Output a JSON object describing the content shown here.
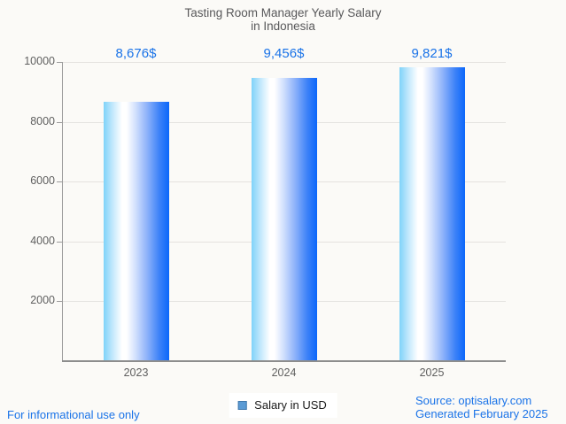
{
  "title": {
    "line1": "Tasting Room Manager Yearly Salary",
    "line2": "in Indonesia"
  },
  "chart_data": {
    "type": "bar",
    "title": "Tasting Room Manager Yearly Salary in Indonesia",
    "categories": [
      "2023",
      "2024",
      "2025"
    ],
    "values": [
      8676,
      9456,
      9821
    ],
    "value_labels": [
      "8,676$",
      "9,456$",
      "9,821$"
    ],
    "xlabel": "",
    "ylabel": "",
    "ylim": [
      0,
      10000
    ],
    "yticks": [
      2000,
      4000,
      6000,
      8000,
      10000
    ],
    "grid": true,
    "legend_entries": [
      "Salary in USD"
    ],
    "legend_position": "bottom-center",
    "bar_gradient": [
      "#7fd3f9",
      "#ffffff",
      "#0b67fa"
    ]
  },
  "legend": {
    "label": "Salary in USD",
    "swatch_fill": "#5b9bd5",
    "swatch_border": "#4179ad"
  },
  "footer": {
    "disclaimer": "For informational use only",
    "source_line1": "Source: optisalary.com",
    "source_line2": "Generated February 2025"
  },
  "colors": {
    "accent_blue": "#1a73e8",
    "title_gray": "#58585a",
    "axis_label_gray": "#5f5f5f",
    "grid_gray": "#e5e3e0",
    "axis_gray": "#9b9b9b",
    "background": "#fbfaf7",
    "legend_bg": "#ffffff"
  }
}
